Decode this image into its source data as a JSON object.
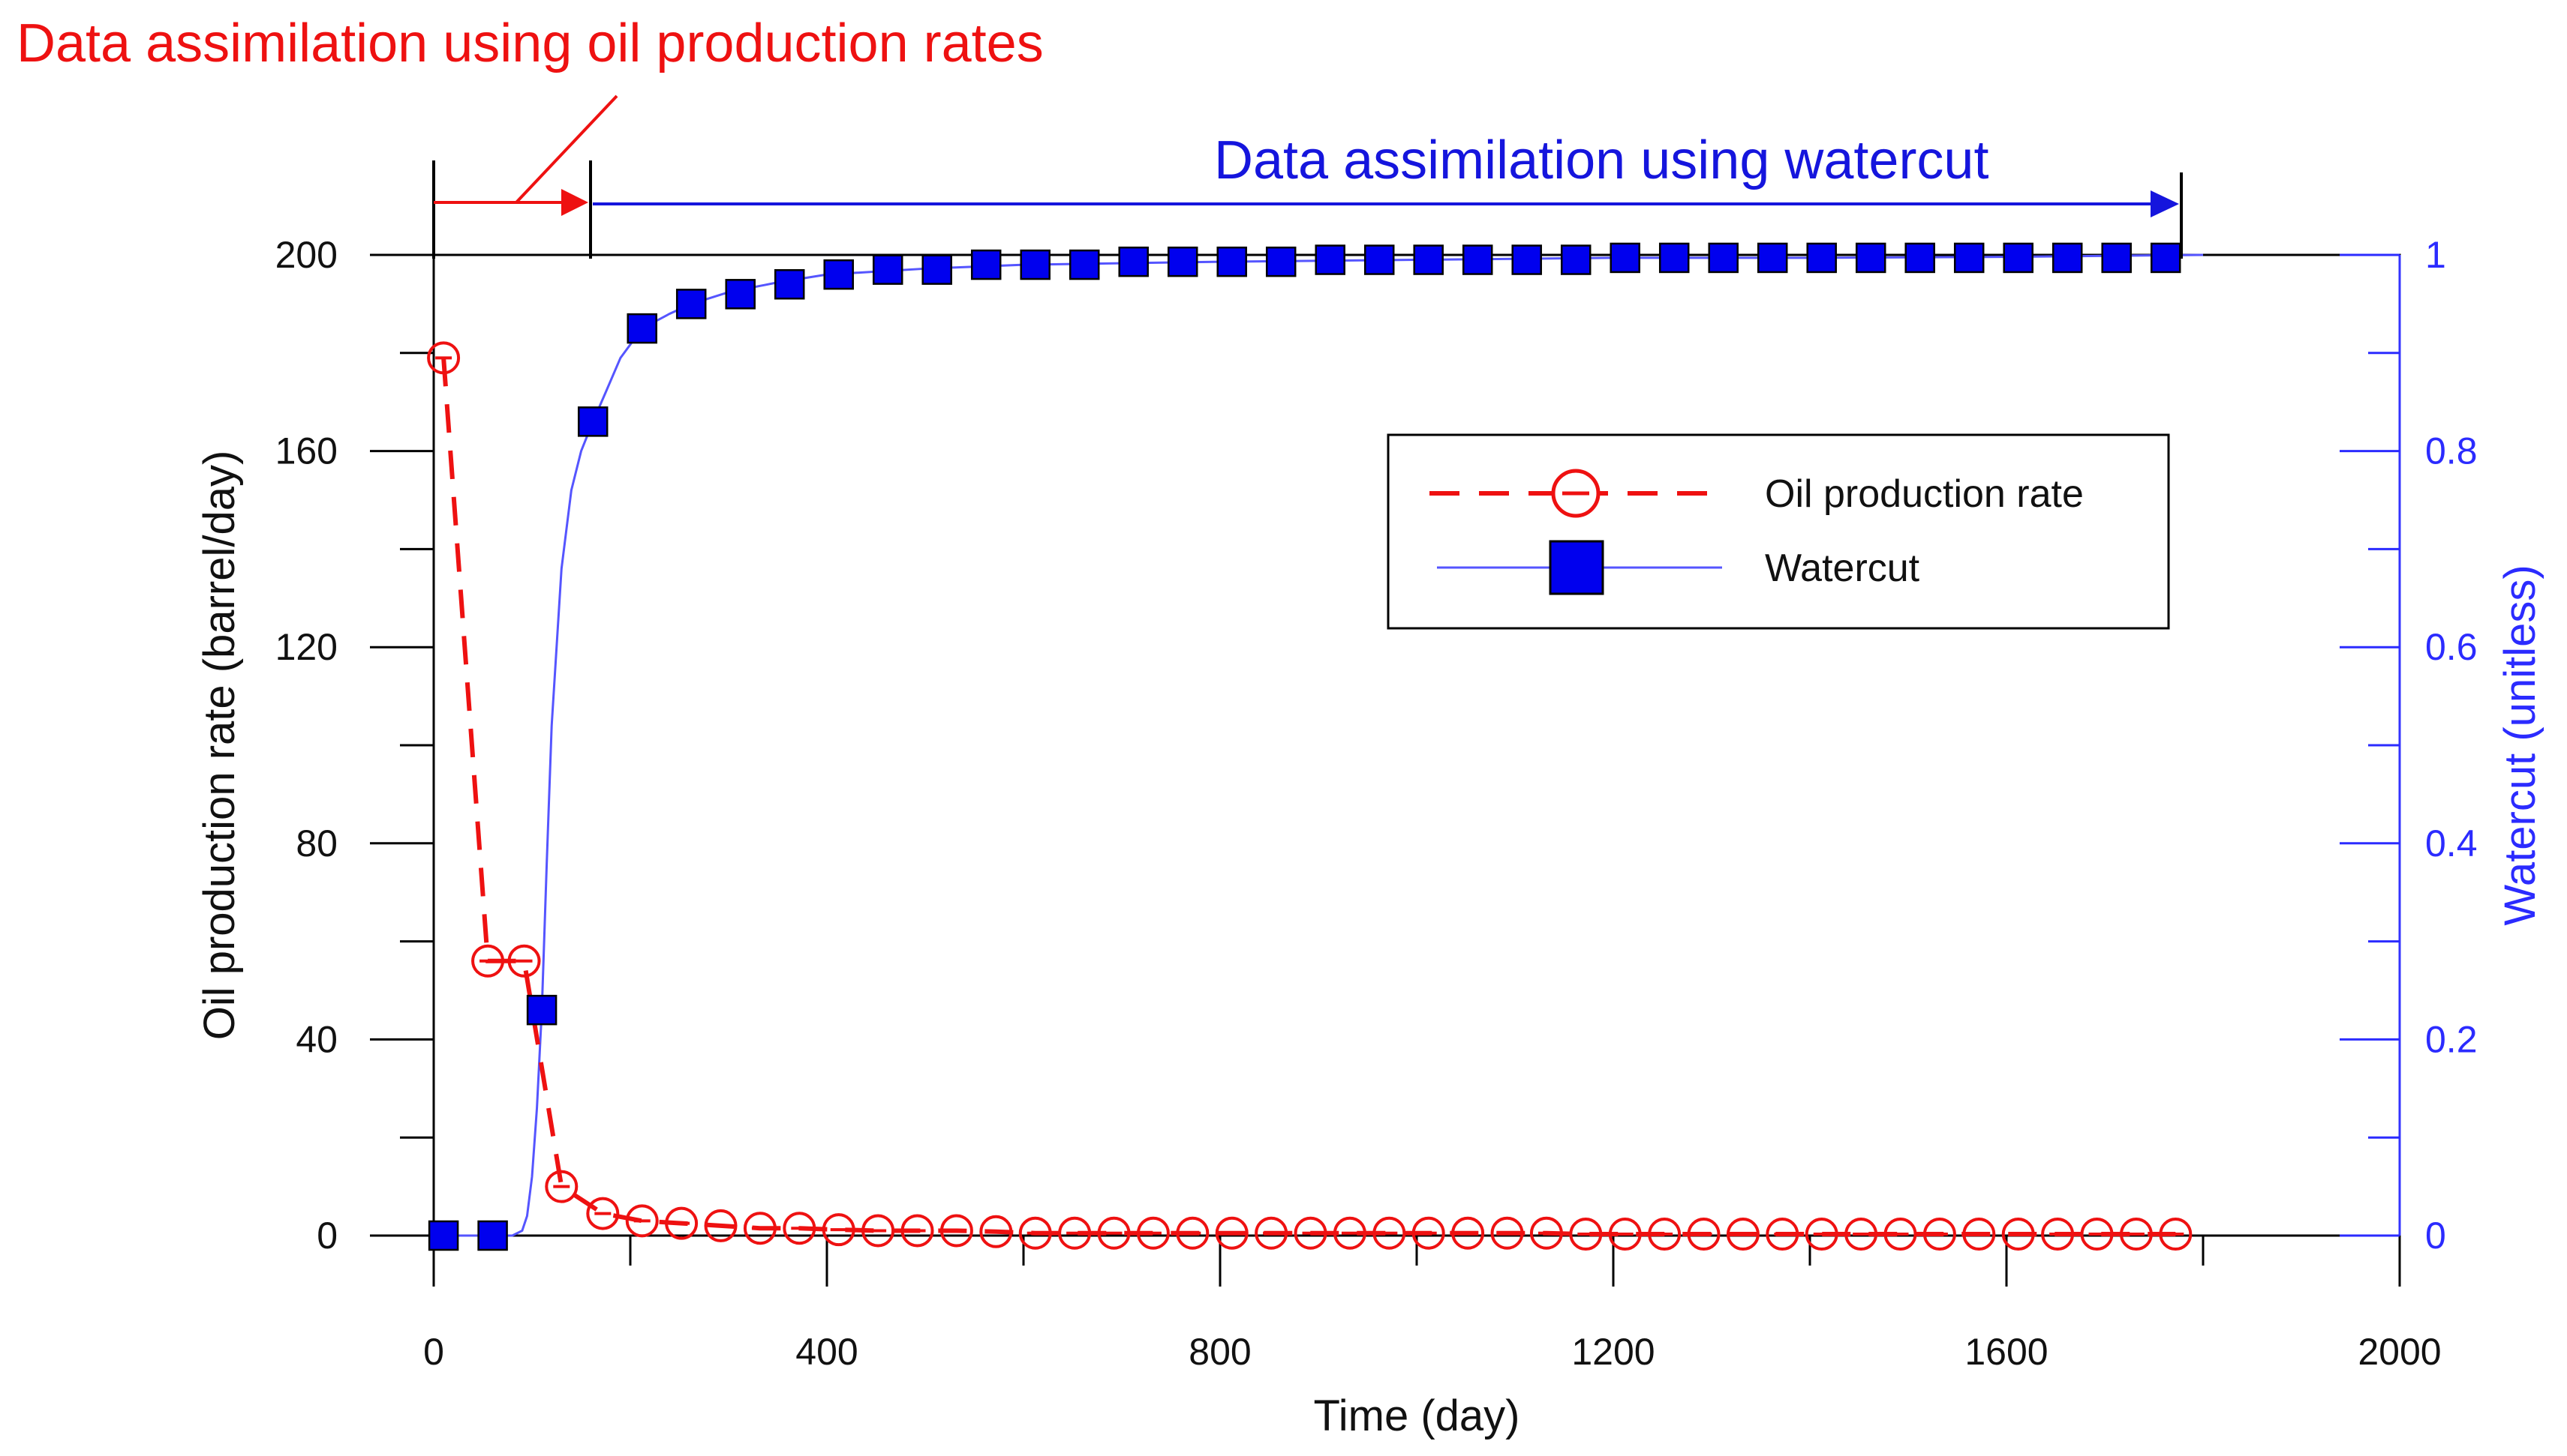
{
  "colors": {
    "oil": "#ee1111",
    "water": "#0000ee",
    "waterLine": "#5555ff",
    "rightAxis": "#2b2bff",
    "blueAnnot": "#1515dd"
  },
  "chart_data": {
    "type": "line",
    "title": "",
    "xlabel": "Time (day)",
    "ylabel": "Oil production rate (barrel/day)",
    "ylabel_right": "Watercut (unitless)",
    "xlim": [
      0,
      2000
    ],
    "ylim": [
      0,
      200
    ],
    "ylim_right": [
      0,
      1
    ],
    "x_ticks": [
      "0",
      "400",
      "800",
      "1200",
      "1600",
      "2000"
    ],
    "y_ticks": [
      "0",
      "40",
      "80",
      "120",
      "160",
      "200"
    ],
    "y_ticks_right": [
      "0",
      "0.2",
      "0.4",
      "0.6",
      "0.8",
      "1"
    ],
    "legend_position": "upper-right",
    "series": [
      {
        "name": "Oil production rate",
        "axis": "left",
        "style": "dashed-circle",
        "x": [
          10,
          55,
          92,
          130,
          172,
          212,
          252,
          292,
          332,
          372,
          412,
          452,
          492,
          532,
          572,
          612,
          652,
          692,
          732,
          772,
          812,
          852,
          892,
          932,
          972,
          1012,
          1052,
          1092,
          1132,
          1172,
          1212,
          1252,
          1292,
          1332,
          1372,
          1412,
          1452,
          1492,
          1532,
          1572,
          1612,
          1652,
          1692,
          1732,
          1772
        ],
        "values": [
          179,
          56,
          56,
          10,
          4.5,
          3,
          2.5,
          2,
          1.5,
          1.5,
          1.2,
          1,
          1,
          1,
          0.8,
          0.5,
          0.5,
          0.5,
          0.5,
          0.5,
          0.5,
          0.5,
          0.5,
          0.5,
          0.5,
          0.5,
          0.5,
          0.5,
          0.5,
          0.3,
          0.3,
          0.3,
          0.3,
          0.3,
          0.3,
          0.3,
          0.3,
          0.3,
          0.3,
          0.3,
          0.3,
          0.3,
          0.3,
          0.3,
          0.3
        ]
      },
      {
        "name": "Watercut",
        "axis": "right",
        "style": "solid-square",
        "x": [
          10,
          60,
          110,
          162,
          212,
          262,
          312,
          362,
          412,
          462,
          512,
          562,
          612,
          662,
          712,
          762,
          812,
          862,
          912,
          962,
          1012,
          1062,
          1112,
          1162,
          1212,
          1262,
          1312,
          1362,
          1412,
          1462,
          1512,
          1562,
          1612,
          1662,
          1712,
          1762
        ],
        "values": [
          0,
          0,
          0.23,
          0.83,
          0.925,
          0.95,
          0.96,
          0.97,
          0.98,
          0.985,
          0.985,
          0.99,
          0.99,
          0.99,
          0.993,
          0.993,
          0.993,
          0.993,
          0.995,
          0.995,
          0.995,
          0.995,
          0.995,
          0.995,
          0.997,
          0.997,
          0.997,
          0.997,
          0.997,
          0.997,
          0.997,
          0.997,
          0.997,
          0.997,
          0.997,
          0.997
        ]
      }
    ],
    "watercut_curve": {
      "x": [
        0,
        80,
        90,
        95,
        100,
        105,
        110,
        115,
        120,
        130,
        140,
        150,
        162,
        175,
        190,
        212,
        240,
        262,
        300,
        350,
        400,
        500,
        600,
        800,
        1000,
        1200,
        1400,
        1600,
        1800
      ],
      "values": [
        0,
        0,
        0.005,
        0.02,
        0.06,
        0.13,
        0.23,
        0.38,
        0.52,
        0.68,
        0.76,
        0.8,
        0.83,
        0.86,
        0.895,
        0.925,
        0.94,
        0.95,
        0.962,
        0.972,
        0.98,
        0.986,
        0.99,
        0.993,
        0.995,
        0.997,
        0.997,
        0.998,
        1.0
      ]
    },
    "annotations": [
      {
        "text": "Data assimilation using oil production rates",
        "span": [
          0,
          160
        ]
      },
      {
        "text": "Data assimilation using watercut",
        "span": [
          160,
          1780
        ]
      }
    ]
  }
}
